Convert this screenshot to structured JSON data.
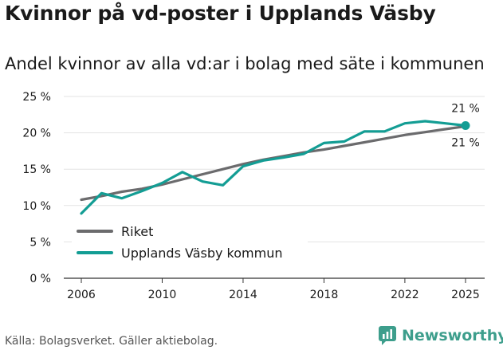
{
  "title": "Kvinnor på vd-poster i Upplands Väsby",
  "subtitle": "Andel kvinnor av alla vd:ar i bolag med säte i kommunen",
  "source": "Källa: Bolagsverket. Gäller aktiebolag.",
  "brand": {
    "name": "Newsworthy",
    "color": "#3d9e8c"
  },
  "chart_data": {
    "type": "line",
    "x": [
      2006,
      2007,
      2008,
      2009,
      2010,
      2011,
      2012,
      2013,
      2014,
      2015,
      2016,
      2017,
      2018,
      2019,
      2020,
      2021,
      2022,
      2023,
      2024,
      2025
    ],
    "xticks": [
      2006,
      2010,
      2014,
      2018,
      2022,
      2025
    ],
    "yticks": [
      0,
      5,
      10,
      15,
      20,
      25
    ],
    "ytick_labels": [
      "0 %",
      "5 %",
      "10 %",
      "15 %",
      "20 %",
      "25 %"
    ],
    "ylim": [
      0,
      25
    ],
    "grid": true,
    "legend_position": "bottom-left",
    "series": [
      {
        "name": "Riket",
        "color": "#6b6b6d",
        "values": [
          10.8,
          11.3,
          11.9,
          12.3,
          12.9,
          13.6,
          14.3,
          15.0,
          15.7,
          16.3,
          16.8,
          17.3,
          17.7,
          18.2,
          18.7,
          19.2,
          19.7,
          20.1,
          20.5,
          20.9
        ],
        "end_label": "21 %"
      },
      {
        "name": "Upplands Väsby kommun",
        "color": "#139d94",
        "values": [
          8.9,
          11.7,
          11.0,
          12.0,
          13.1,
          14.6,
          13.3,
          12.8,
          15.4,
          16.2,
          16.6,
          17.1,
          18.6,
          18.8,
          20.2,
          20.2,
          21.3,
          21.6,
          21.3,
          21.0
        ],
        "end_label": "21 %"
      }
    ]
  }
}
